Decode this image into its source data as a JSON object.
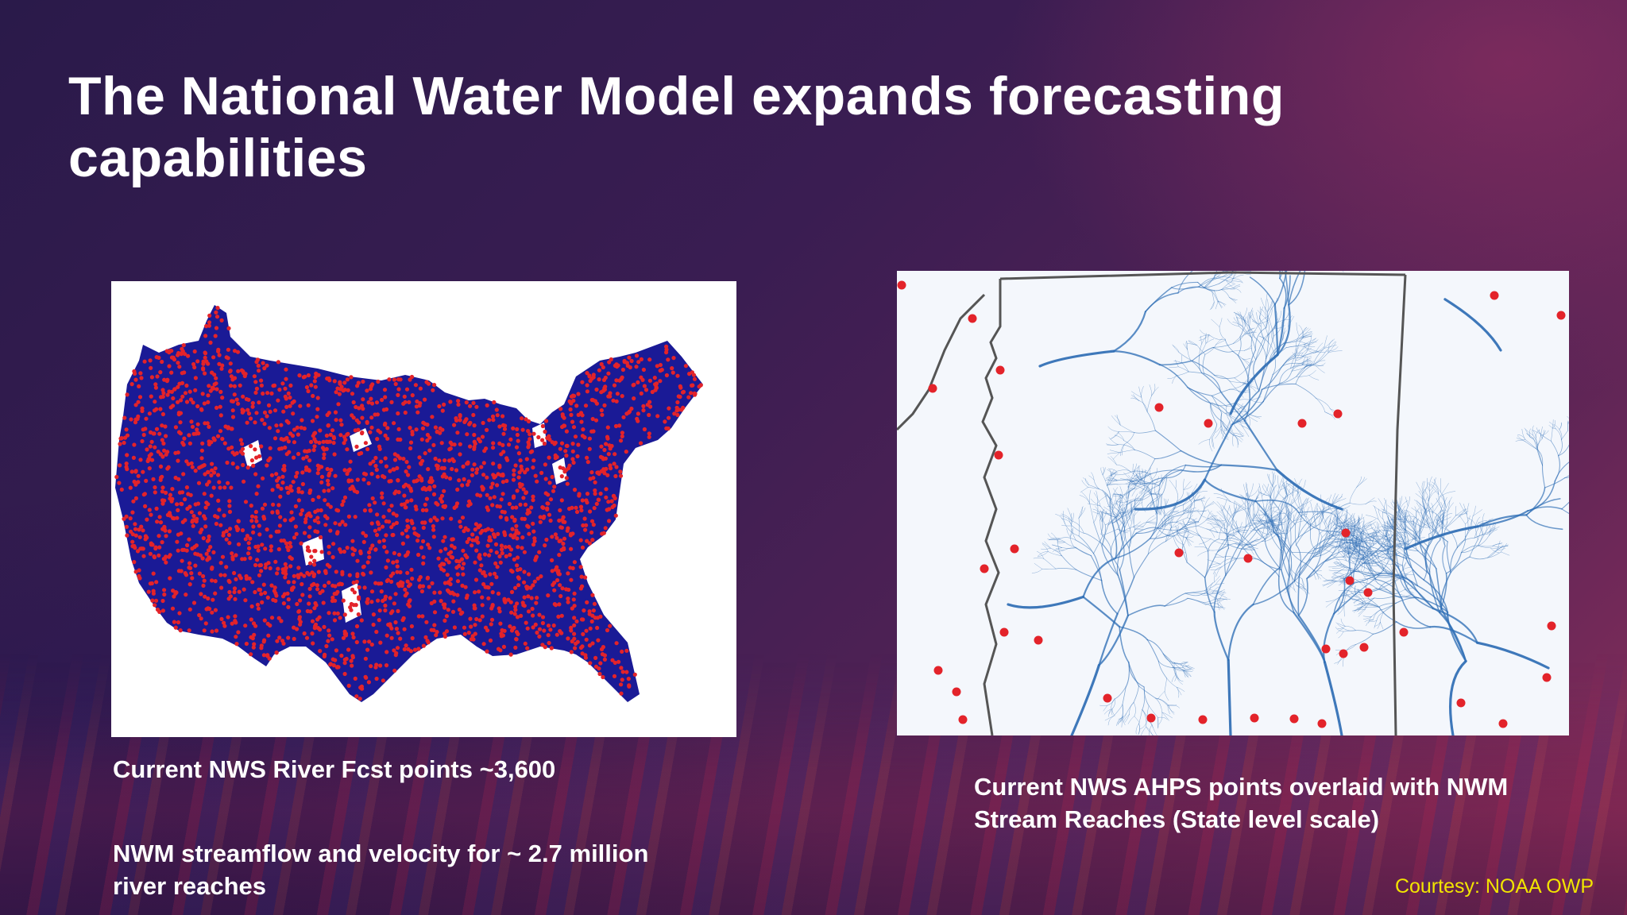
{
  "slide": {
    "title": "The National Water Model expands forecasting capabilities",
    "left_caption_line1": "Current NWS River Fcst points ~3,600",
    "left_caption_line2": "NWM streamflow and velocity for ~ 2.7 million river reaches",
    "right_caption": "Current NWS AHPS points overlaid with NWM Stream Reaches (State level scale)",
    "courtesy": "Courtesy: NOAA OWP"
  },
  "colors": {
    "accent_yellow": "#f2e500",
    "map_blue": "#1a1a96",
    "point_red": "#e3232a",
    "stream_blue": "#2f6eb5"
  },
  "images": {
    "left_map": "conus-river-forecast-points-map",
    "right_map": "state-level-stream-reaches-map"
  }
}
